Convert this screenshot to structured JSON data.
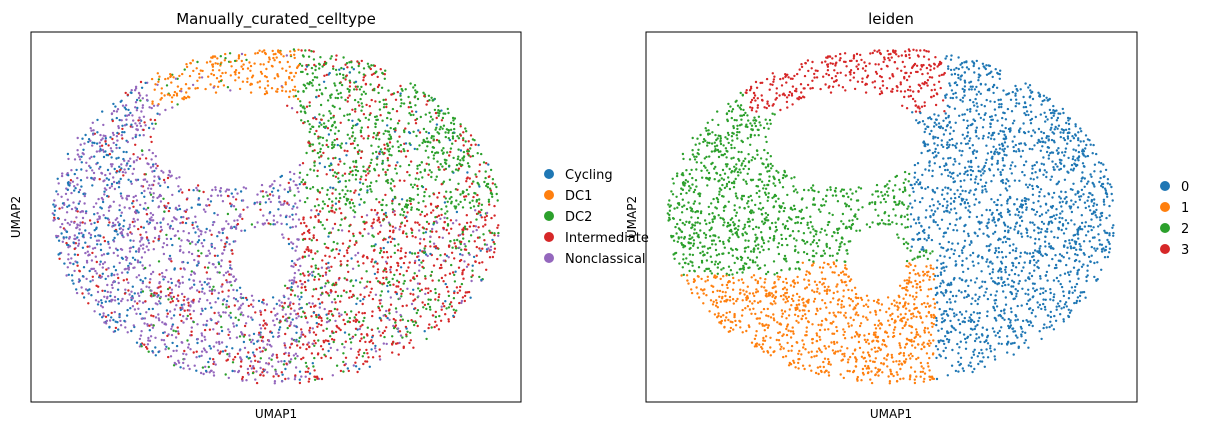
{
  "chart_data": [
    {
      "type": "scatter",
      "title": "Manually_curated_celltype",
      "xlabel": "UMAP1",
      "ylabel": "UMAP2",
      "legend_position": "right",
      "categories": [
        {
          "name": "Cycling",
          "color": "#1f77b4"
        },
        {
          "name": "DC1",
          "color": "#ff7f0e"
        },
        {
          "name": "DC2",
          "color": "#2ca02c"
        },
        {
          "name": "Intermediate",
          "color": "#d62728"
        },
        {
          "name": "Nonclassical",
          "color": "#9467bd"
        }
      ]
    },
    {
      "type": "scatter",
      "title": "leiden",
      "xlabel": "UMAP1",
      "ylabel": "UMAP2",
      "legend_position": "right",
      "categories": [
        {
          "name": "0",
          "color": "#1f77b4"
        },
        {
          "name": "1",
          "color": "#ff7f0e"
        },
        {
          "name": "2",
          "color": "#2ca02c"
        },
        {
          "name": "3",
          "color": "#d62728"
        }
      ]
    }
  ]
}
